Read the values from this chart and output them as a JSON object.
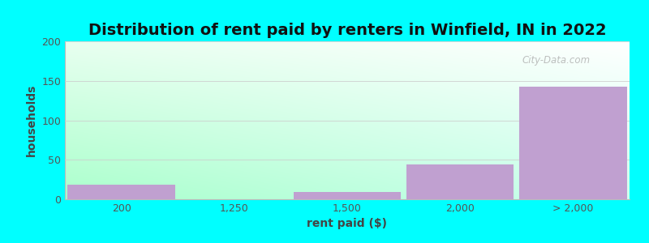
{
  "title": "Distribution of rent paid by renters in Winfield, IN in 2022",
  "xlabel": "rent paid ($)",
  "ylabel": "households",
  "bar_labels": [
    "200",
    "1,250",
    "1,500",
    "2,000",
    "> 2,000"
  ],
  "bar_values": [
    18,
    0,
    9,
    44,
    143
  ],
  "bar_color": "#c0a0d0",
  "bar_edge_color": "#c0a0d0",
  "ylim": [
    0,
    200
  ],
  "yticks": [
    0,
    50,
    100,
    150,
    200
  ],
  "fig_bg_color": "#00ffff",
  "title_fontsize": 14,
  "axis_label_fontsize": 10,
  "tick_fontsize": 9,
  "watermark_text": "City-Data.com",
  "grad_color_topleft": "#e8ffe8",
  "grad_color_topright": "#f0f0ff",
  "grad_color_bottomleft": "#aaffcc",
  "grad_color_bottomright": "#ffffff"
}
